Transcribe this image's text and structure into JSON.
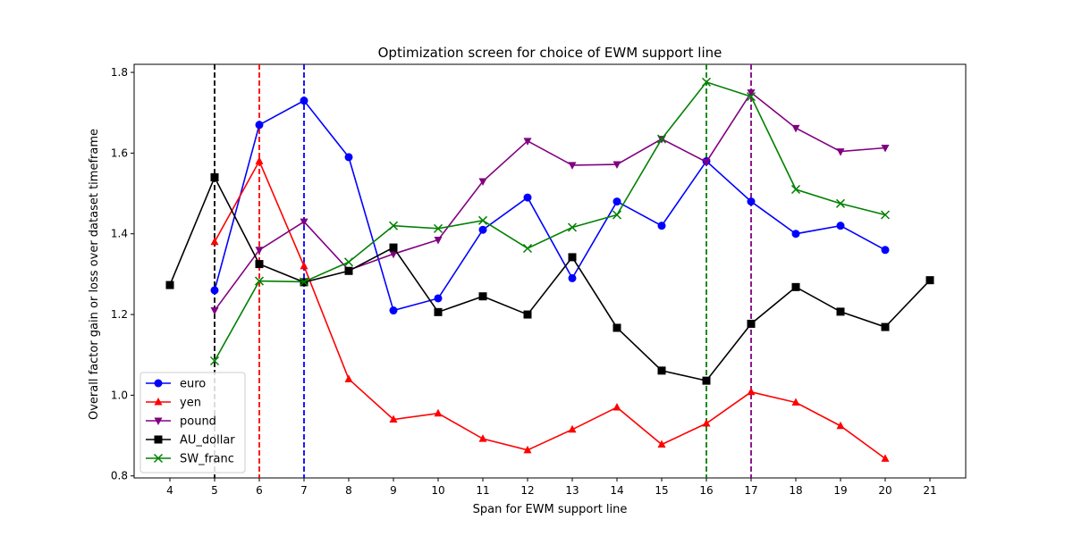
{
  "chart_data": {
    "type": "line",
    "title": "Optimization screen for choice of EWM support line",
    "xlabel": "Span for EWM support line",
    "ylabel": "Overall factor gain or loss over dataset timeframe",
    "xlim": [
      3.2,
      21.8
    ],
    "ylim": [
      0.795,
      1.82
    ],
    "xticks": [
      4,
      5,
      6,
      7,
      8,
      9,
      10,
      11,
      12,
      13,
      14,
      15,
      16,
      17,
      18,
      19,
      20,
      21
    ],
    "yticks": [
      0.8,
      1.0,
      1.2,
      1.4,
      1.6,
      1.8
    ],
    "ytick_labels": [
      "0.8",
      "1.0",
      "1.2",
      "1.4",
      "1.6",
      "1.8"
    ],
    "grid": false,
    "legend_position": "lower-left",
    "series": [
      {
        "name": "euro",
        "color": "#0000ff",
        "marker": "circle",
        "x": [
          5,
          6,
          7,
          8,
          9,
          10,
          11,
          12,
          13,
          14,
          15,
          16,
          17,
          18,
          19,
          20
        ],
        "y": [
          1.26,
          1.67,
          1.73,
          1.59,
          1.21,
          1.24,
          1.41,
          1.49,
          1.29,
          1.48,
          1.42,
          1.58,
          1.48,
          1.4,
          1.42,
          1.36
        ]
      },
      {
        "name": "yen",
        "color": "#ff0000",
        "marker": "triangle-up",
        "x": [
          5,
          6,
          7,
          8,
          9,
          10,
          11,
          12,
          13,
          14,
          15,
          16,
          17,
          18,
          19,
          20
        ],
        "y": [
          1.38,
          1.58,
          1.32,
          1.04,
          0.94,
          0.955,
          0.892,
          0.864,
          0.915,
          0.97,
          0.878,
          0.93,
          1.008,
          0.982,
          0.924,
          0.843
        ]
      },
      {
        "name": "pound",
        "color": "#800080",
        "marker": "triangle-down",
        "x": [
          5,
          6,
          7,
          8,
          9,
          10,
          11,
          12,
          13,
          14,
          15,
          16,
          17,
          18,
          19,
          20
        ],
        "y": [
          1.21,
          1.36,
          1.43,
          1.31,
          1.35,
          1.385,
          1.53,
          1.63,
          1.57,
          1.572,
          1.635,
          1.578,
          1.75,
          1.662,
          1.604,
          1.613
        ]
      },
      {
        "name": "AU_dollar",
        "color": "#000000",
        "marker": "square",
        "x": [
          4,
          5,
          6,
          7,
          8,
          9,
          10,
          11,
          12,
          13,
          14,
          15,
          16,
          17,
          18,
          19,
          20,
          21
        ],
        "y": [
          1.273,
          1.54,
          1.325,
          1.28,
          1.308,
          1.366,
          1.206,
          1.245,
          1.2,
          1.342,
          1.167,
          1.061,
          1.036,
          1.177,
          1.268,
          1.207,
          1.169,
          1.285
        ]
      },
      {
        "name": "SW_franc",
        "color": "#008000",
        "marker": "x",
        "x": [
          5,
          6,
          7,
          8,
          9,
          10,
          11,
          12,
          13,
          14,
          15,
          16,
          17,
          18,
          19,
          20
        ],
        "y": [
          1.085,
          1.283,
          1.281,
          1.33,
          1.42,
          1.413,
          1.433,
          1.364,
          1.416,
          1.447,
          1.635,
          1.776,
          1.74,
          1.51,
          1.475,
          1.447
        ]
      }
    ],
    "vlines": [
      {
        "x": 5,
        "color": "#000000"
      },
      {
        "x": 6,
        "color": "#ff0000"
      },
      {
        "x": 7,
        "color": "#0000ff"
      },
      {
        "x": 16,
        "color": "#008000"
      },
      {
        "x": 17,
        "color": "#800080"
      }
    ]
  }
}
